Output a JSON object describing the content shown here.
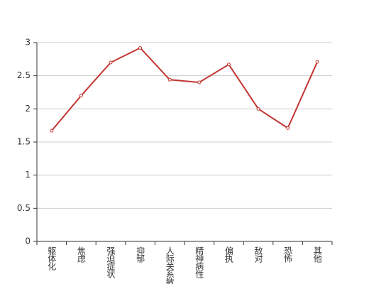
{
  "chart_data": {
    "type": "line",
    "categories": [
      "躯体化",
      "焦虑",
      "强迫症状",
      "抑郁",
      "人际关系敏感",
      "精神病性",
      "偏执",
      "敌对",
      "恐怖",
      "其他"
    ],
    "series": [
      {
        "color": "#c23531",
        "values": [
          1.67,
          2.2,
          2.7,
          2.92,
          2.44,
          2.4,
          2.67,
          2.0,
          1.71,
          2.71
        ]
      }
    ],
    "ylim": [
      0,
      3
    ],
    "yticks": [
      0,
      0.5,
      1,
      1.5,
      2,
      2.5,
      3
    ],
    "grid": true
  }
}
